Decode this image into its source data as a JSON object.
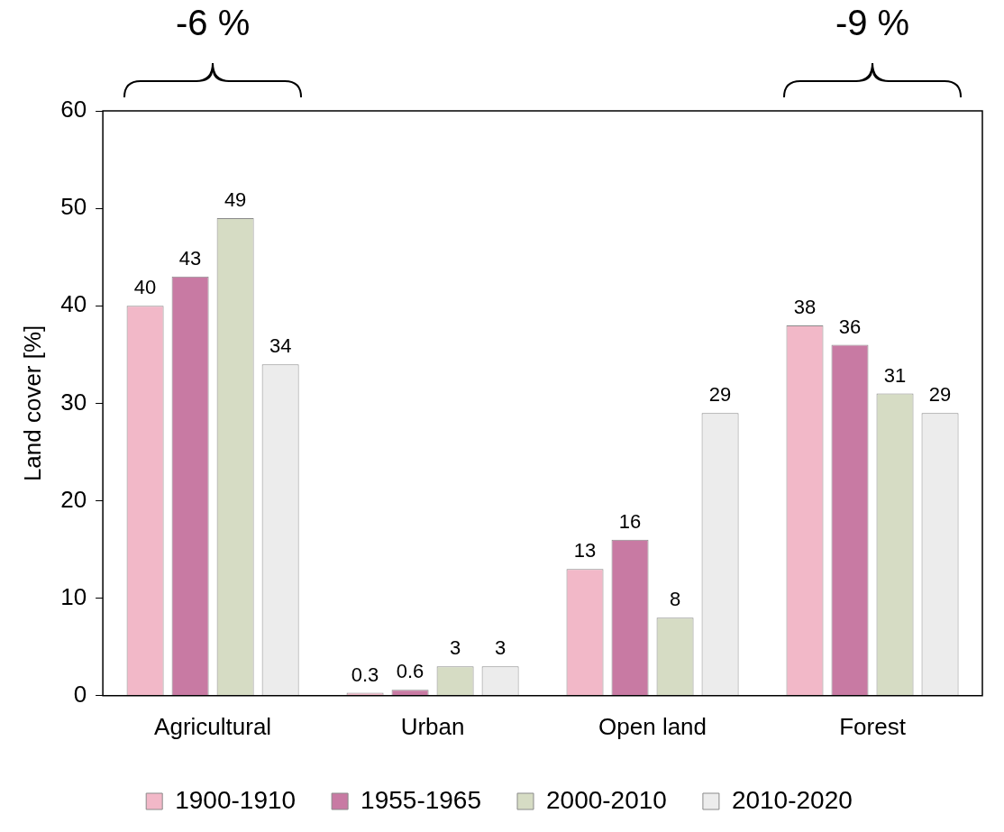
{
  "chart_data": {
    "type": "bar",
    "ylabel": "Land cover [%]",
    "categories": [
      "Agricultural",
      "Urban",
      "Open land",
      "Forest"
    ],
    "series": [
      {
        "name": "1900-1910",
        "color": "#f2b8c8",
        "values": [
          40,
          0.3,
          13,
          38
        ]
      },
      {
        "name": "1955-1965",
        "color": "#c87aa3",
        "values": [
          43,
          0.6,
          16,
          36
        ]
      },
      {
        "name": "2000-2010",
        "color": "#d6dcc4",
        "values": [
          49,
          3,
          8,
          31
        ]
      },
      {
        "name": "2010-2020",
        "color": "#ececec",
        "values": [
          34,
          3,
          29,
          29
        ]
      }
    ],
    "ylim": [
      0,
      60
    ],
    "yticks": [
      0,
      10,
      20,
      30,
      40,
      50,
      60
    ],
    "data_labels": true,
    "legend": "bottom",
    "annotations": [
      "-6 %",
      "-9 %"
    ]
  }
}
